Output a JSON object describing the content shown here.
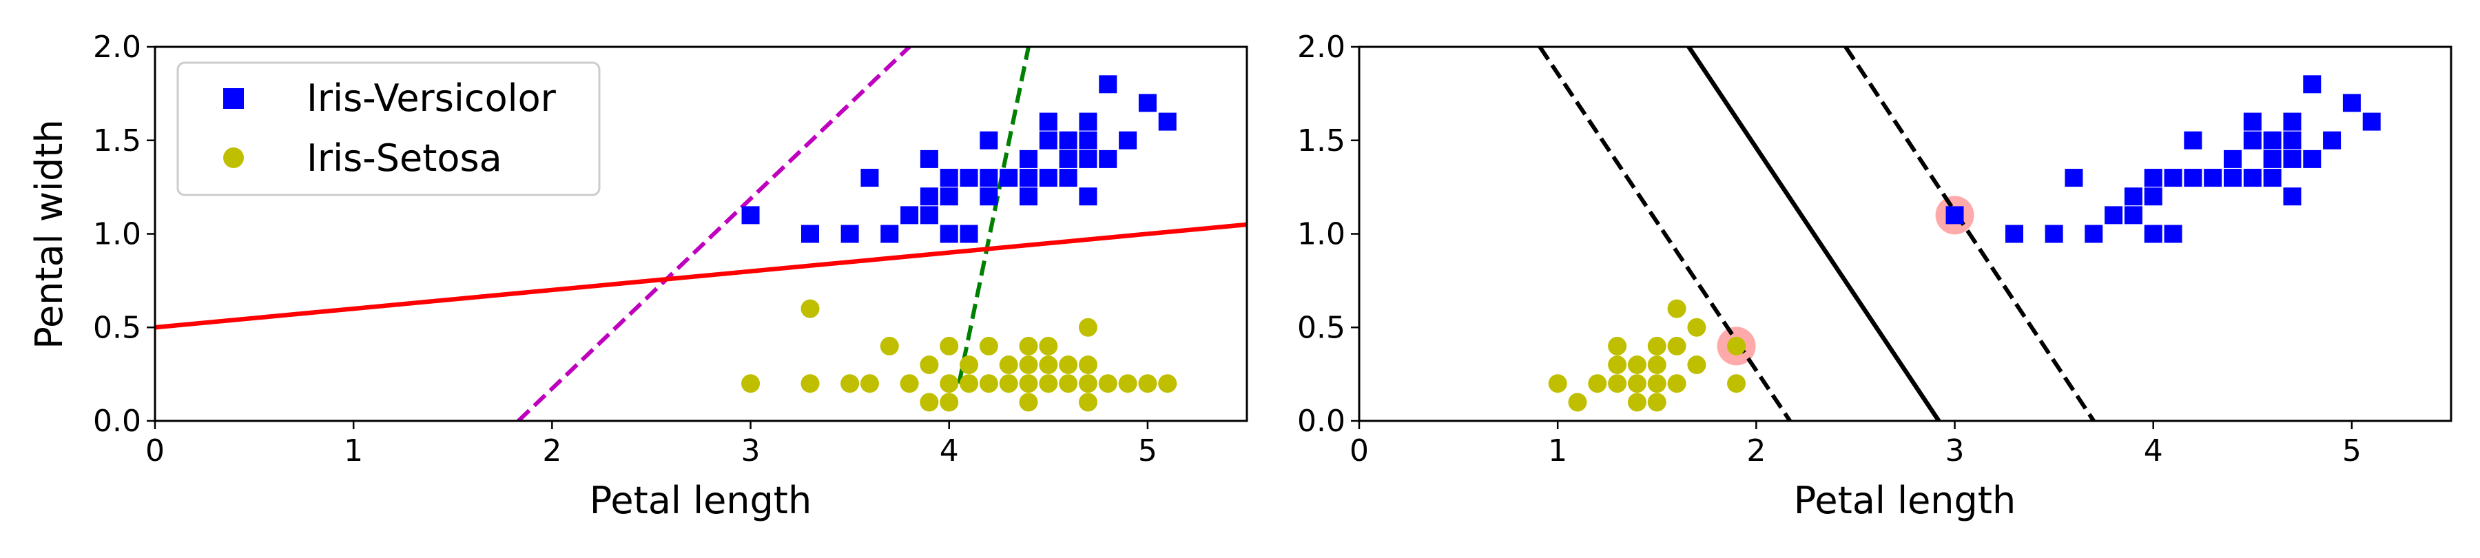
{
  "chart_data": [
    {
      "type": "scatter",
      "xlabel": "Petal length",
      "ylabel": "Pental width",
      "xlim": [
        0,
        5.5
      ],
      "ylim": [
        0,
        2.0
      ],
      "xticks": [
        "0",
        "1",
        "2",
        "3",
        "4",
        "5"
      ],
      "xtick_values": [
        0,
        1,
        2,
        3,
        4,
        5
      ],
      "yticks": [
        "0.0",
        "0.5",
        "1.0",
        "1.5",
        "2.0"
      ],
      "ytick_values": [
        0.0,
        0.5,
        1.0,
        1.5,
        2.0
      ],
      "legend": {
        "placement": "upper-left"
      },
      "series": [
        {
          "name": "Iris-Versicolor",
          "marker": "square",
          "color": "#0000ff",
          "points": [
            [
              3.0,
              1.1
            ],
            [
              3.3,
              1.0
            ],
            [
              3.5,
              1.0
            ],
            [
              3.6,
              1.3
            ],
            [
              3.7,
              1.0
            ],
            [
              3.8,
              1.1
            ],
            [
              3.9,
              1.1
            ],
            [
              3.9,
              1.2
            ],
            [
              3.9,
              1.4
            ],
            [
              4.0,
              1.0
            ],
            [
              4.0,
              1.2
            ],
            [
              4.0,
              1.3
            ],
            [
              4.1,
              1.0
            ],
            [
              4.1,
              1.3
            ],
            [
              4.2,
              1.2
            ],
            [
              4.2,
              1.3
            ],
            [
              4.2,
              1.5
            ],
            [
              4.3,
              1.3
            ],
            [
              4.4,
              1.2
            ],
            [
              4.4,
              1.3
            ],
            [
              4.4,
              1.4
            ],
            [
              4.5,
              1.3
            ],
            [
              4.5,
              1.5
            ],
            [
              4.5,
              1.6
            ],
            [
              4.6,
              1.3
            ],
            [
              4.6,
              1.4
            ],
            [
              4.6,
              1.5
            ],
            [
              4.7,
              1.2
            ],
            [
              4.7,
              1.4
            ],
            [
              4.7,
              1.5
            ],
            [
              4.7,
              1.6
            ],
            [
              4.8,
              1.4
            ],
            [
              4.8,
              1.8
            ],
            [
              4.9,
              1.5
            ],
            [
              5.0,
              1.7
            ],
            [
              5.1,
              1.6
            ]
          ]
        },
        {
          "name": "Iris-Setosa",
          "marker": "circle",
          "color": "#bfbf00",
          "points": [
            [
              3.0,
              0.2
            ],
            [
              3.3,
              0.2
            ],
            [
              3.3,
              0.6
            ],
            [
              3.5,
              0.2
            ],
            [
              3.6,
              0.2
            ],
            [
              3.7,
              0.4
            ],
            [
              3.8,
              0.2
            ],
            [
              3.9,
              0.1
            ],
            [
              3.9,
              0.3
            ],
            [
              4.0,
              0.1
            ],
            [
              4.0,
              0.2
            ],
            [
              4.0,
              0.4
            ],
            [
              4.1,
              0.2
            ],
            [
              4.1,
              0.3
            ],
            [
              4.2,
              0.2
            ],
            [
              4.2,
              0.4
            ],
            [
              4.3,
              0.2
            ],
            [
              4.3,
              0.3
            ],
            [
              4.4,
              0.1
            ],
            [
              4.4,
              0.2
            ],
            [
              4.4,
              0.3
            ],
            [
              4.4,
              0.4
            ],
            [
              4.5,
              0.2
            ],
            [
              4.5,
              0.3
            ],
            [
              4.5,
              0.4
            ],
            [
              4.6,
              0.2
            ],
            [
              4.6,
              0.3
            ],
            [
              4.7,
              0.1
            ],
            [
              4.7,
              0.2
            ],
            [
              4.7,
              0.3
            ],
            [
              4.7,
              0.5
            ],
            [
              4.8,
              0.2
            ],
            [
              4.9,
              0.2
            ],
            [
              5.0,
              0.2
            ],
            [
              5.1,
              0.2
            ]
          ]
        }
      ],
      "lines": [
        {
          "color": "#bf00bf",
          "style": "dashed",
          "x": [
            1.83,
            3.8
          ],
          "y": [
            0.0,
            2.0
          ]
        },
        {
          "color": "#008000",
          "style": "dashed",
          "x": [
            4.05,
            4.4
          ],
          "y": [
            0.2,
            2.0
          ]
        },
        {
          "color": "#ff0000",
          "style": "solid",
          "x": [
            0.0,
            5.5
          ],
          "y": [
            0.5,
            1.05
          ]
        }
      ]
    },
    {
      "type": "scatter",
      "xlabel": "Petal length",
      "ylabel": "",
      "xlim": [
        0,
        5.5
      ],
      "ylim": [
        0,
        2.0
      ],
      "xticks": [
        "0",
        "1",
        "2",
        "3",
        "4",
        "5"
      ],
      "xtick_values": [
        0,
        1,
        2,
        3,
        4,
        5
      ],
      "yticks": [
        "0.0",
        "0.5",
        "1.0",
        "1.5",
        "2.0"
      ],
      "ytick_values": [
        0.0,
        0.5,
        1.0,
        1.5,
        2.0
      ],
      "series": [
        {
          "marker": "square",
          "color": "#0000ff",
          "points": [
            [
              3.0,
              1.1
            ],
            [
              3.3,
              1.0
            ],
            [
              3.5,
              1.0
            ],
            [
              3.6,
              1.3
            ],
            [
              3.7,
              1.0
            ],
            [
              3.8,
              1.1
            ],
            [
              3.9,
              1.1
            ],
            [
              3.9,
              1.2
            ],
            [
              4.0,
              1.0
            ],
            [
              4.0,
              1.2
            ],
            [
              4.0,
              1.3
            ],
            [
              4.1,
              1.0
            ],
            [
              4.1,
              1.3
            ],
            [
              4.2,
              1.3
            ],
            [
              4.2,
              1.5
            ],
            [
              4.3,
              1.3
            ],
            [
              4.4,
              1.3
            ],
            [
              4.4,
              1.4
            ],
            [
              4.5,
              1.3
            ],
            [
              4.5,
              1.5
            ],
            [
              4.5,
              1.6
            ],
            [
              4.6,
              1.3
            ],
            [
              4.6,
              1.4
            ],
            [
              4.6,
              1.5
            ],
            [
              4.7,
              1.2
            ],
            [
              4.7,
              1.4
            ],
            [
              4.7,
              1.5
            ],
            [
              4.7,
              1.6
            ],
            [
              4.8,
              1.4
            ],
            [
              4.8,
              1.8
            ],
            [
              4.9,
              1.5
            ],
            [
              5.0,
              1.7
            ],
            [
              5.1,
              1.6
            ]
          ]
        },
        {
          "marker": "circle",
          "color": "#bfbf00",
          "points": [
            [
              1.0,
              0.2
            ],
            [
              1.1,
              0.1
            ],
            [
              1.2,
              0.2
            ],
            [
              1.3,
              0.2
            ],
            [
              1.3,
              0.3
            ],
            [
              1.3,
              0.4
            ],
            [
              1.4,
              0.1
            ],
            [
              1.4,
              0.2
            ],
            [
              1.4,
              0.3
            ],
            [
              1.5,
              0.1
            ],
            [
              1.5,
              0.2
            ],
            [
              1.5,
              0.3
            ],
            [
              1.5,
              0.4
            ],
            [
              1.6,
              0.2
            ],
            [
              1.6,
              0.4
            ],
            [
              1.6,
              0.6
            ],
            [
              1.7,
              0.3
            ],
            [
              1.7,
              0.5
            ],
            [
              1.9,
              0.2
            ],
            [
              1.9,
              0.4
            ]
          ]
        }
      ],
      "support_vectors": {
        "color": "#ffaaaa",
        "points": [
          [
            3.0,
            1.1
          ],
          [
            1.9,
            0.4
          ]
        ]
      },
      "lines": [
        {
          "color": "#000000",
          "style": "solid",
          "x": [
            1.66,
            2.92
          ],
          "y": [
            2.0,
            0.0
          ]
        },
        {
          "color": "#000000",
          "style": "dashed",
          "x": [
            0.91,
            2.17
          ],
          "y": [
            2.0,
            0.0
          ]
        },
        {
          "color": "#000000",
          "style": "dashed",
          "x": [
            2.45,
            3.7
          ],
          "y": [
            2.0,
            0.0
          ]
        }
      ]
    }
  ]
}
